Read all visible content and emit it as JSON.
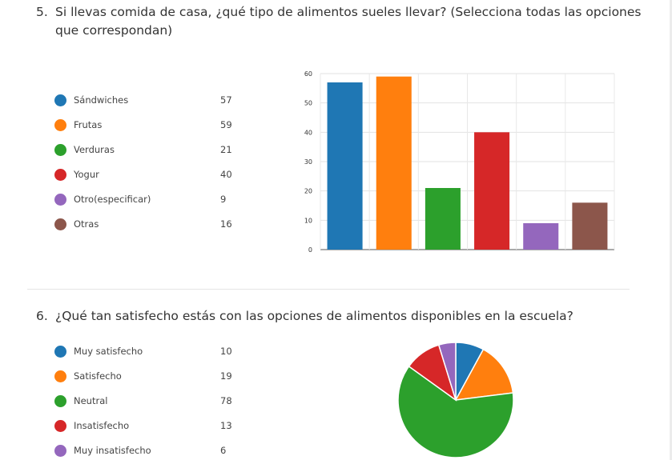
{
  "q5": {
    "number": "5.",
    "title": "Si llevas comida de casa, ¿qué tipo de alimentos sueles llevar? (Selecciona todas las opciones que correspondan)"
  },
  "q6": {
    "number": "6.",
    "title": "¿Qué tan satisfecho estás con las opciones de alimentos disponibles en la escuela?"
  },
  "chart_data": [
    {
      "type": "bar",
      "categories": [
        "Sándwiches",
        "Frutas",
        "Verduras",
        "Yogur",
        "Otro(especificar)",
        "Otras"
      ],
      "values": [
        57,
        59,
        21,
        40,
        9,
        16
      ],
      "colors": [
        "#1f77b4",
        "#ff7f0e",
        "#2ca02c",
        "#d62728",
        "#9467bd",
        "#8c564b"
      ],
      "yticks": [
        0,
        10,
        20,
        30,
        40,
        50,
        60
      ],
      "ylim": [
        0,
        60
      ],
      "grid": true,
      "legend": "left"
    },
    {
      "type": "pie",
      "categories": [
        "Muy satisfecho",
        "Satisfecho",
        "Neutral",
        "Insatisfecho",
        "Muy insatisfecho"
      ],
      "values": [
        10,
        19,
        78,
        13,
        6
      ],
      "colors": [
        "#1f77b4",
        "#ff7f0e",
        "#2ca02c",
        "#d62728",
        "#9467bd"
      ],
      "legend": "left"
    }
  ]
}
